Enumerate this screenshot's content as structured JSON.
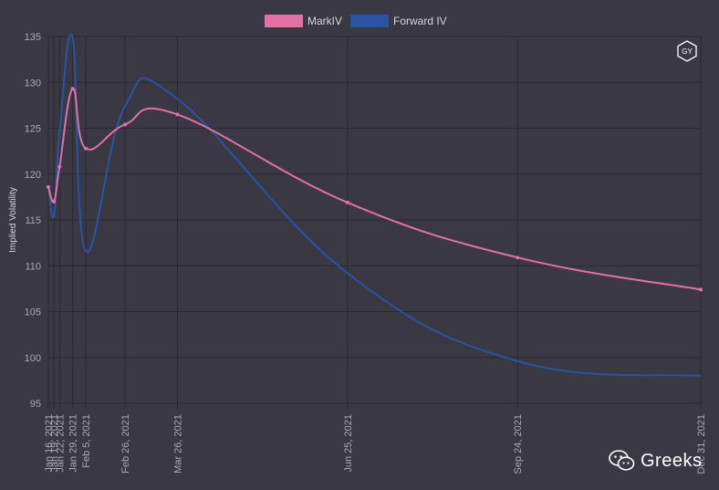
{
  "chart_data": {
    "type": "line",
    "ylabel": "Implied Volatility",
    "ylim": [
      95,
      135
    ],
    "yticks": [
      95,
      100,
      105,
      110,
      115,
      120,
      125,
      130,
      135
    ],
    "x_dates": [
      "2021-01-16",
      "2021-01-19",
      "2021-01-22",
      "2021-01-29",
      "2021-02-05",
      "2021-02-26",
      "2021-03-26",
      "2021-06-25",
      "2021-09-24",
      "2021-12-31"
    ],
    "x_labels": [
      "Jan 16, 2021",
      "Jan 19, 2021",
      "Jan 22, 2021",
      "Jan 29, 2021",
      "Feb 5, 2021",
      "Feb 26, 2021",
      "Mar 26, 2021",
      "Jun 25, 2021",
      "Sep 24, 2021",
      "Dec 31, 2021"
    ],
    "grid": true,
    "legend_position": "top",
    "series": [
      {
        "name": "MarkIV",
        "color": "#e36fa7",
        "values": [
          118.6,
          117.0,
          120.8,
          129.3,
          122.8,
          125.4,
          126.5,
          116.9,
          110.9,
          107.4
        ],
        "show_points": true
      },
      {
        "name": "Forward IV",
        "color": "#2a53a3",
        "values": [
          118.6,
          115.5,
          124.5,
          134.8,
          111.6,
          127.4,
          128.2,
          109.2,
          99.6,
          98.0
        ],
        "show_points": false
      }
    ]
  },
  "badge": {
    "text": "GY"
  },
  "watermark": {
    "text": "Greeks"
  }
}
